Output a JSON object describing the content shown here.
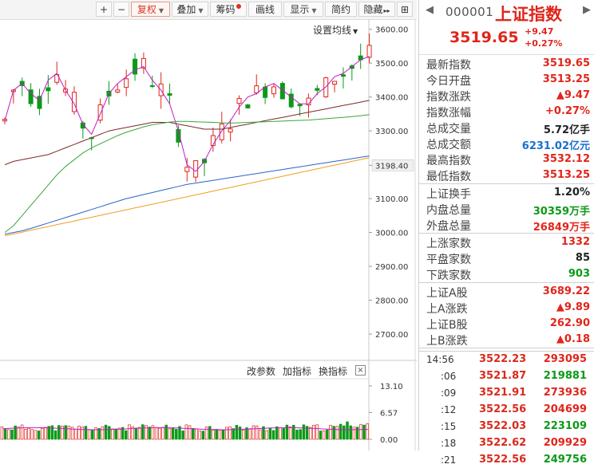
{
  "toolbar": {
    "zoom_in": "+",
    "zoom_out": "−",
    "fuquan": "复权",
    "diejia": "叠加",
    "chouma": "筹码",
    "huaxian": "画线",
    "xianshi": "显示",
    "jianyue": "简约",
    "yincang": "隐藏",
    "more": "▸▸",
    "expand": "⊞"
  },
  "chart": {
    "setting_ma": "设置均线",
    "price_ticks": [
      "3600.00",
      "3500.00",
      "3400.00",
      "3300.00",
      "3198.40",
      "3100.00",
      "3000.00",
      "2900.00",
      "2800.00",
      "2700.00"
    ],
    "volume_ticks": [
      "13.10",
      "6.57",
      "0.00"
    ],
    "vol_links": {
      "params": "改参数",
      "add": "加指标",
      "swap": "换指标"
    },
    "close_icon": "×"
  },
  "chart_data": {
    "type": "candlestick",
    "ylim": [
      2620,
      3630
    ],
    "volume_ylim": [
      0,
      13.1
    ],
    "series": [
      {
        "name": "",
        "values": [
          3330,
          3420,
          3440,
          3410,
          3390,
          3450,
          3470,
          3420,
          3380,
          3320,
          3290,
          3350,
          3410,
          3440,
          3460,
          3480,
          3490,
          3450,
          3420,
          3380,
          3300,
          3200,
          3180,
          3210,
          3260,
          3300,
          3330,
          3370,
          3400,
          3410,
          3430,
          3440,
          3420,
          3400,
          3380,
          3380,
          3410,
          3430,
          3460,
          3470,
          3490,
          3510,
          3520
        ]
      },
      {
        "name": "",
        "values": [
          3200,
          3210,
          3215,
          3220,
          3225,
          3230,
          3240,
          3250,
          3260,
          3270,
          3280,
          3290,
          3300,
          3305,
          3310,
          3315,
          3320,
          3325,
          3325,
          3325,
          3320,
          3315,
          3310,
          3305,
          3305,
          3305,
          3310,
          3315,
          3320,
          3325,
          3330,
          3335,
          3340,
          3345,
          3350,
          3355,
          3360,
          3365,
          3370,
          3375,
          3380,
          3385,
          3390
        ]
      },
      {
        "name": "",
        "values": [
          3000,
          3020,
          3050,
          3080,
          3110,
          3140,
          3170,
          3195,
          3215,
          3235,
          3250,
          3262,
          3274,
          3286,
          3296,
          3304,
          3312,
          3318,
          3322,
          3326,
          3328,
          3328,
          3327,
          3326,
          3325,
          3324,
          3323,
          3324,
          3325,
          3326,
          3327,
          3328,
          3329,
          3330,
          3331,
          3332,
          3334,
          3336,
          3338,
          3340,
          3342,
          3345,
          3348
        ]
      },
      {
        "name": "",
        "values": [
          2995,
          3000,
          3005,
          3012,
          3020,
          3028,
          3036,
          3044,
          3052,
          3060,
          3068,
          3076,
          3084,
          3092,
          3100,
          3106,
          3112,
          3118,
          3124,
          3130,
          3136,
          3142,
          3146,
          3150,
          3154,
          3158,
          3162,
          3166,
          3170,
          3174,
          3178,
          3182,
          3186,
          3190,
          3194,
          3198,
          3202,
          3206,
          3210,
          3214,
          3218,
          3222,
          3226
        ]
      }
    ]
  },
  "panel": {
    "nav_left": "◀",
    "nav_right": "▶",
    "code": "000001",
    "name": "上证指数",
    "price": "3519.65",
    "change": "+9.47",
    "change_pct": "+0.27%",
    "stats": [
      {
        "label": "最新指数",
        "value": "3519.65",
        "color": "red"
      },
      {
        "label": "今日开盘",
        "value": "3513.25",
        "color": "red"
      },
      {
        "label": "指数涨跌",
        "value": "▲9.47",
        "color": "red"
      },
      {
        "label": "指数涨幅",
        "value": "+0.27%",
        "color": "red"
      },
      {
        "label": "总成交量",
        "value": "5.72亿手",
        "color": "dark"
      },
      {
        "label": "总成交额",
        "value": "6231.02亿元",
        "color": "blue"
      },
      {
        "label": "最高指数",
        "value": "3532.12",
        "color": "red"
      },
      {
        "label": "最低指数",
        "value": "3513.25",
        "color": "red"
      }
    ],
    "stats2": [
      {
        "label": "上证换手",
        "value": "1.20%",
        "color": "dark"
      },
      {
        "label": "内盘总量",
        "value": "30359万手",
        "color": "green"
      },
      {
        "label": "外盘总量",
        "value": "26849万手",
        "color": "red"
      }
    ],
    "stats3": [
      {
        "label": "上涨家数",
        "value": "1332",
        "color": "red"
      },
      {
        "label": "平盘家数",
        "value": "85",
        "color": "dark"
      },
      {
        "label": "下跌家数",
        "value": "903",
        "color": "green"
      }
    ],
    "stats4": [
      {
        "label": "上证A股",
        "value": "3689.22",
        "color": "red"
      },
      {
        "label": "上A涨跌",
        "value": "▲9.89",
        "color": "red"
      },
      {
        "label": "上证B股",
        "value": "262.90",
        "color": "red"
      },
      {
        "label": "上B涨跌",
        "value": "▲0.18",
        "color": "red"
      }
    ],
    "ticks": [
      {
        "time": "14:56",
        "price": "3522.23",
        "volume": "293095",
        "vcolor": "red"
      },
      {
        "time": ":06",
        "price": "3521.87",
        "volume": "219881",
        "vcolor": "green"
      },
      {
        "time": ":09",
        "price": "3521.91",
        "volume": "273936",
        "vcolor": "red"
      },
      {
        "time": ":12",
        "price": "3522.56",
        "volume": "204699",
        "vcolor": "red"
      },
      {
        "time": ":15",
        "price": "3522.03",
        "volume": "223109",
        "vcolor": "green"
      },
      {
        "time": ":18",
        "price": "3522.62",
        "volume": "209929",
        "vcolor": "red"
      },
      {
        "time": ":21",
        "price": "3522.56",
        "volume": "249756",
        "vcolor": "green"
      }
    ]
  }
}
